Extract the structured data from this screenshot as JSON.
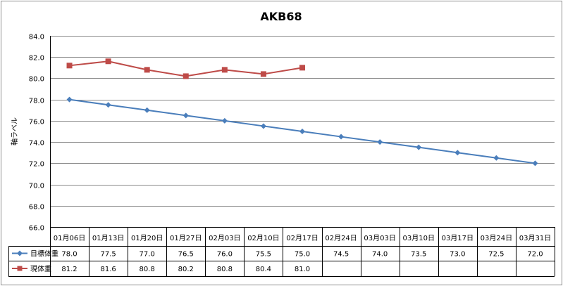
{
  "chart_data": {
    "type": "line",
    "title": "AKB68",
    "ylabel": "軸ラベル",
    "ylim": [
      66.0,
      84.0
    ],
    "ytick_step": 2.0,
    "yticks": [
      "84.0",
      "82.0",
      "80.0",
      "78.0",
      "76.0",
      "74.0",
      "72.0",
      "70.0",
      "68.0",
      "66.0"
    ],
    "grid": true,
    "legend": "data-table",
    "categories": [
      "01月06日",
      "01月13日",
      "01月20日",
      "01月27日",
      "02月03日",
      "02月10日",
      "02月17日",
      "02月24日",
      "03月03日",
      "03月10日",
      "03月17日",
      "03月24日",
      "03月31日"
    ],
    "series": [
      {
        "name": "目標体重",
        "color": "#4a7ebb",
        "marker": "diamond",
        "values": [
          78.0,
          77.5,
          77.0,
          76.5,
          76.0,
          75.5,
          75.0,
          74.5,
          74.0,
          73.5,
          73.0,
          72.5,
          72.0
        ],
        "labels": [
          "78.0",
          "77.5",
          "77.0",
          "76.5",
          "76.0",
          "75.5",
          "75.0",
          "74.5",
          "74.0",
          "73.5",
          "73.0",
          "72.5",
          "72.0"
        ]
      },
      {
        "name": "現体重",
        "color": "#be4b48",
        "marker": "square",
        "values": [
          81.2,
          81.6,
          80.8,
          80.2,
          80.8,
          80.4,
          81.0,
          null,
          null,
          null,
          null,
          null,
          null
        ],
        "labels": [
          "81.2",
          "81.6",
          "80.8",
          "80.2",
          "80.8",
          "80.4",
          "81.0",
          "",
          "",
          "",
          "",
          "",
          ""
        ]
      }
    ]
  }
}
